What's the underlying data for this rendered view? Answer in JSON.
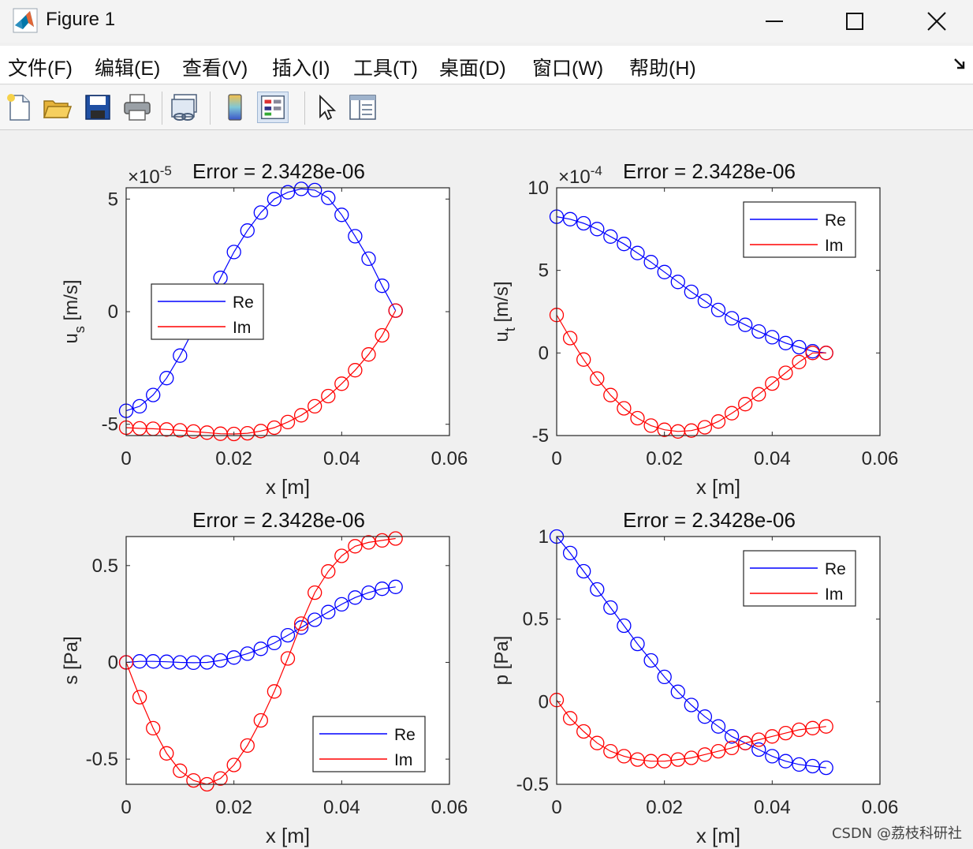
{
  "window": {
    "title": "Figure 1",
    "controls": {
      "minimize": "minimize",
      "maximize": "maximize",
      "close": "close"
    }
  },
  "menu": [
    "文件(F)",
    "编辑(E)",
    "查看(V)",
    "插入(I)",
    "工具(T)",
    "桌面(D)",
    "窗口(W)",
    "帮助(H)"
  ],
  "toolbar_icons": [
    "new-figure-icon",
    "open-folder-icon",
    "save-icon",
    "print-icon",
    "link-plot-icon",
    "colorbar-icon",
    "legend-icon",
    "pointer-icon",
    "property-editor-icon"
  ],
  "colors": {
    "re": "#0000ff",
    "im": "#ff0000"
  },
  "chart_data": [
    {
      "type": "line",
      "title": "Error = 2.3428e-06",
      "xlabel": "x [m]",
      "ylabel": "u_s [m/s]",
      "exponent": "×10^-5",
      "xlim": [
        0,
        0.06
      ],
      "ylim": [
        -5.5,
        5.5
      ],
      "xticks": [
        0,
        0.02,
        0.04,
        0.06
      ],
      "xticklabels": [
        "0",
        "0.02",
        "0.04",
        "0.06"
      ],
      "yticks": [
        -5,
        0,
        5
      ],
      "yticklabels": [
        "-5",
        "0",
        "5"
      ],
      "legend": {
        "position": "west",
        "entries": [
          "Re",
          "Im"
        ]
      },
      "x": [
        0,
        0.0025,
        0.005,
        0.0075,
        0.01,
        0.0125,
        0.015,
        0.0175,
        0.02,
        0.0225,
        0.025,
        0.0275,
        0.03,
        0.0325,
        0.035,
        0.0375,
        0.04,
        0.0425,
        0.045,
        0.0475,
        0.05
      ],
      "series": [
        {
          "name": "Re",
          "values": [
            -4.4,
            -4.2,
            -3.7,
            -2.95,
            -1.95,
            -0.8,
            0.3,
            1.5,
            2.65,
            3.6,
            4.4,
            5.0,
            5.3,
            5.45,
            5.4,
            5.05,
            4.3,
            3.35,
            2.35,
            1.15,
            0.05
          ]
        },
        {
          "name": "Im",
          "values": [
            -5.15,
            -5.18,
            -5.2,
            -5.23,
            -5.27,
            -5.32,
            -5.37,
            -5.42,
            -5.43,
            -5.4,
            -5.3,
            -5.15,
            -4.9,
            -4.6,
            -4.2,
            -3.75,
            -3.2,
            -2.6,
            -1.9,
            -1.05,
            0.05
          ]
        }
      ]
    },
    {
      "type": "line",
      "title": "Error = 2.3428e-06",
      "xlabel": "x [m]",
      "ylabel": "u_t [m/s]",
      "exponent": "×10^-4",
      "xlim": [
        0,
        0.06
      ],
      "ylim": [
        -5,
        10
      ],
      "xticks": [
        0,
        0.02,
        0.04,
        0.06
      ],
      "xticklabels": [
        "0",
        "0.02",
        "0.04",
        "0.06"
      ],
      "yticks": [
        -5,
        0,
        5,
        10
      ],
      "yticklabels": [
        "-5",
        "0",
        "5",
        "10"
      ],
      "legend": {
        "position": "top-right",
        "entries": [
          "Re",
          "Im"
        ]
      },
      "x": [
        0,
        0.0025,
        0.005,
        0.0075,
        0.01,
        0.0125,
        0.015,
        0.0175,
        0.02,
        0.0225,
        0.025,
        0.0275,
        0.03,
        0.0325,
        0.035,
        0.0375,
        0.04,
        0.0425,
        0.045,
        0.0475,
        0.05
      ],
      "series": [
        {
          "name": "Re",
          "values": [
            8.25,
            8.1,
            7.85,
            7.5,
            7.05,
            6.6,
            6.05,
            5.5,
            4.9,
            4.3,
            3.7,
            3.15,
            2.6,
            2.1,
            1.7,
            1.3,
            0.95,
            0.6,
            0.35,
            0.1,
            0.0
          ]
        },
        {
          "name": "Im",
          "values": [
            2.3,
            0.9,
            -0.4,
            -1.55,
            -2.55,
            -3.35,
            -3.95,
            -4.4,
            -4.65,
            -4.75,
            -4.7,
            -4.5,
            -4.15,
            -3.65,
            -3.1,
            -2.5,
            -1.85,
            -1.2,
            -0.55,
            0.0,
            0.0
          ]
        }
      ]
    },
    {
      "type": "line",
      "title": "Error = 2.3428e-06",
      "xlabel": "x [m]",
      "ylabel": "s [Pa]",
      "xlim": [
        0,
        0.06
      ],
      "ylim": [
        -0.63,
        0.65
      ],
      "xticks": [
        0,
        0.02,
        0.04,
        0.06
      ],
      "xticklabels": [
        "0",
        "0.02",
        "0.04",
        "0.06"
      ],
      "yticks": [
        -0.5,
        0,
        0.5
      ],
      "yticklabels": [
        "-0.5",
        "0",
        "0.5"
      ],
      "legend": {
        "position": "bottom-right",
        "entries": [
          "Re",
          "Im"
        ]
      },
      "x": [
        0,
        0.0025,
        0.005,
        0.0075,
        0.01,
        0.0125,
        0.015,
        0.0175,
        0.02,
        0.0225,
        0.025,
        0.0275,
        0.03,
        0.0325,
        0.035,
        0.0375,
        0.04,
        0.0425,
        0.045,
        0.0475,
        0.05
      ],
      "series": [
        {
          "name": "Re",
          "values": [
            0.0,
            0.005,
            0.005,
            0.003,
            0.0,
            -0.002,
            0.0,
            0.01,
            0.025,
            0.045,
            0.07,
            0.1,
            0.14,
            0.18,
            0.22,
            0.26,
            0.3,
            0.335,
            0.36,
            0.38,
            0.39
          ]
        },
        {
          "name": "Im",
          "values": [
            0.0,
            -0.18,
            -0.34,
            -0.47,
            -0.56,
            -0.61,
            -0.63,
            -0.6,
            -0.53,
            -0.43,
            -0.3,
            -0.15,
            0.02,
            0.2,
            0.36,
            0.47,
            0.55,
            0.6,
            0.62,
            0.63,
            0.64
          ]
        }
      ]
    },
    {
      "type": "line",
      "title": "Error = 2.3428e-06",
      "xlabel": "x [m]",
      "ylabel": "p [Pa]",
      "xlim": [
        0,
        0.06
      ],
      "ylim": [
        -0.5,
        1
      ],
      "xticks": [
        0,
        0.02,
        0.04,
        0.06
      ],
      "xticklabels": [
        "0",
        "0.02",
        "0.04",
        "0.06"
      ],
      "yticks": [
        -0.5,
        0,
        0.5,
        1
      ],
      "yticklabels": [
        "-0.5",
        "0",
        "0.5",
        "1"
      ],
      "legend": {
        "position": "top-right",
        "entries": [
          "Re",
          "Im"
        ]
      },
      "x": [
        0,
        0.0025,
        0.005,
        0.0075,
        0.01,
        0.0125,
        0.015,
        0.0175,
        0.02,
        0.0225,
        0.025,
        0.0275,
        0.03,
        0.0325,
        0.035,
        0.0375,
        0.04,
        0.0425,
        0.045,
        0.0475,
        0.05
      ],
      "series": [
        {
          "name": "Re",
          "values": [
            1.0,
            0.9,
            0.79,
            0.68,
            0.57,
            0.46,
            0.35,
            0.25,
            0.15,
            0.06,
            -0.02,
            -0.09,
            -0.15,
            -0.21,
            -0.25,
            -0.29,
            -0.33,
            -0.36,
            -0.38,
            -0.39,
            -0.4
          ]
        },
        {
          "name": "Im",
          "values": [
            0.01,
            -0.1,
            -0.18,
            -0.25,
            -0.3,
            -0.33,
            -0.35,
            -0.36,
            -0.36,
            -0.35,
            -0.34,
            -0.32,
            -0.3,
            -0.28,
            -0.25,
            -0.23,
            -0.21,
            -0.19,
            -0.17,
            -0.16,
            -0.15
          ]
        }
      ]
    }
  ],
  "watermark": "CSDN @荔枝科研社"
}
